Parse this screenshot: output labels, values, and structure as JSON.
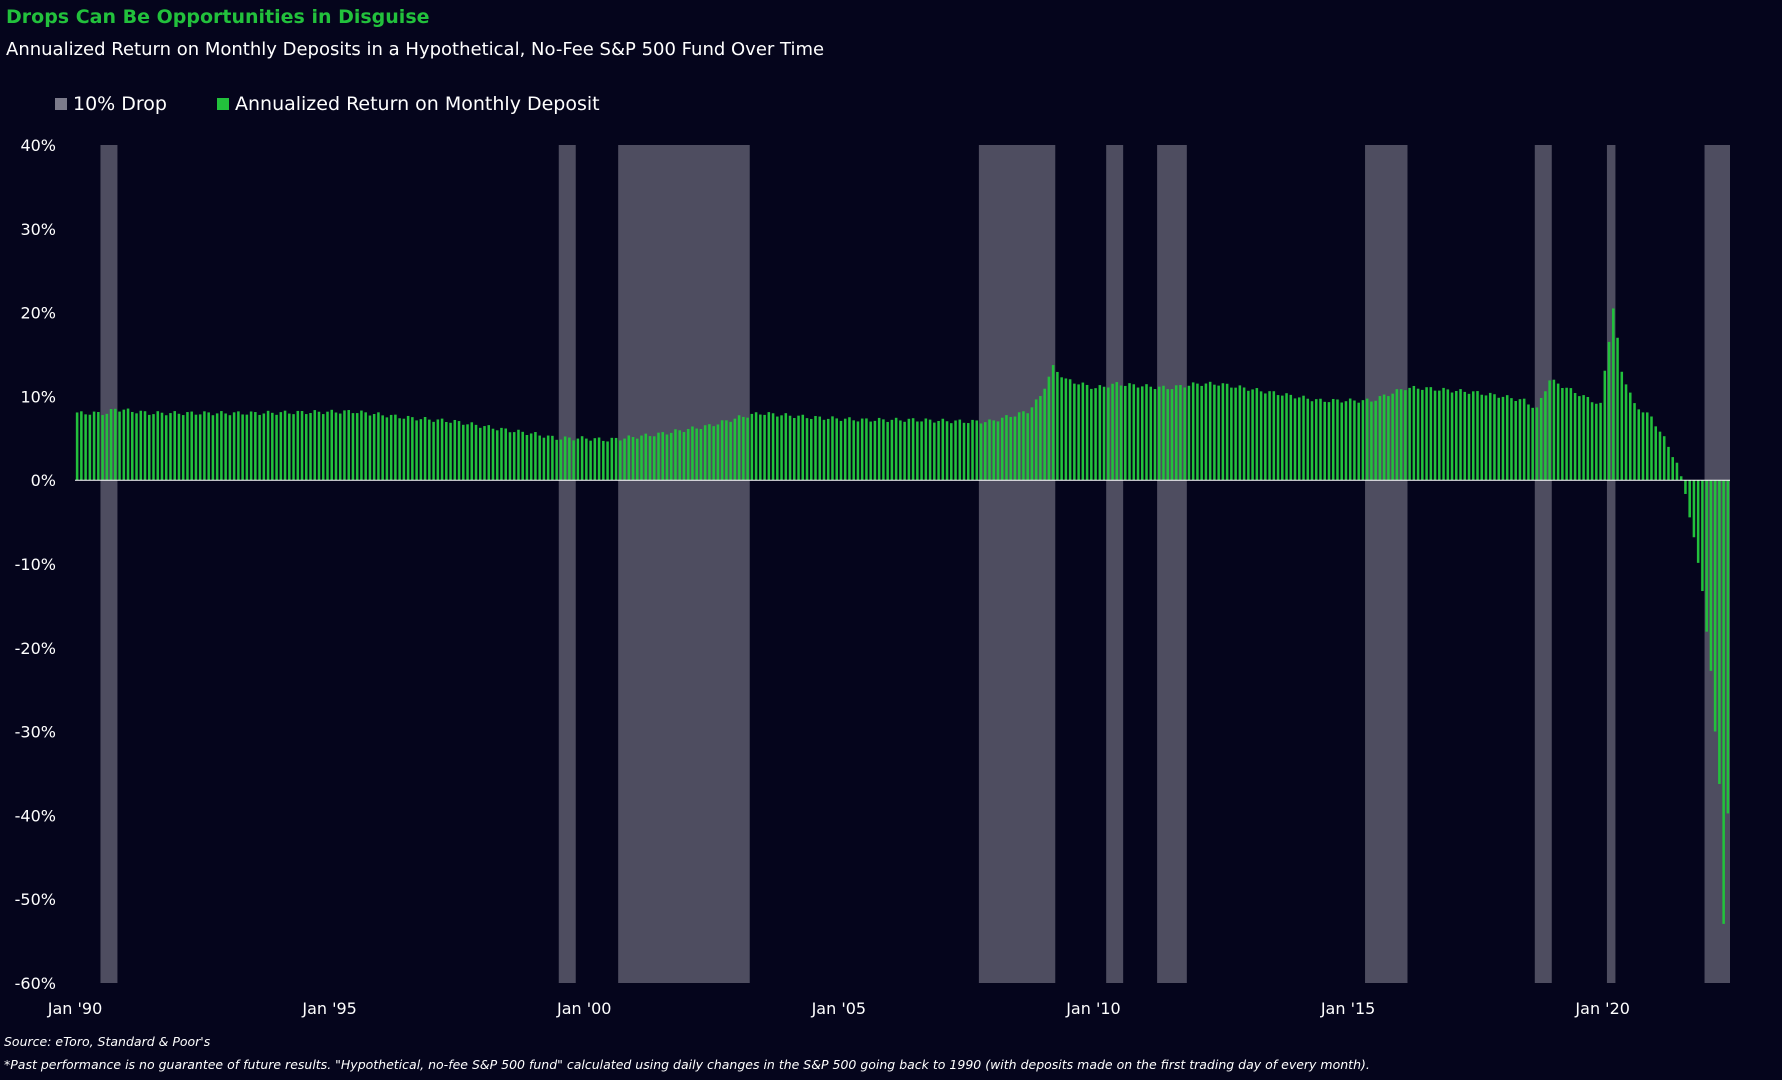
{
  "header": {
    "title": "Drops Can Be Opportunities in Disguise",
    "subtitle": "Annualized Return on Monthly Deposits in a Hypothetical, No-Fee S&P 500 Fund Over Time"
  },
  "legend": {
    "items": [
      {
        "label": "10% Drop",
        "color": "#7c7b8b"
      },
      {
        "label": "Annualized Return on Monthly Deposit",
        "color": "#22c13c"
      }
    ]
  },
  "footer": {
    "source": "Source: eToro, Standard & Poor's",
    "note": "*Past performance is no guarantee of future results. \"Hypothetical, no-fee S&P 500 fund\" calculated using daily changes in the S&P 500 going back to 1990 (with deposits made on the first trading day of every month)."
  },
  "colors": {
    "background": "#05051c",
    "bar": "#22c13c",
    "drop_band": "#7c7b8b"
  },
  "chart_data": {
    "type": "bar",
    "x_type": "time",
    "ylim": [
      -60,
      40
    ],
    "yticks": [
      {
        "value": 40,
        "label": "40%"
      },
      {
        "value": 30,
        "label": "30%"
      },
      {
        "value": 20,
        "label": "20%"
      },
      {
        "value": 10,
        "label": "10%"
      },
      {
        "value": 0,
        "label": "0%"
      },
      {
        "value": -10,
        "label": "-10%"
      },
      {
        "value": -20,
        "label": "-20%"
      },
      {
        "value": -30,
        "label": "-30%"
      },
      {
        "value": -40,
        "label": "-40%"
      },
      {
        "value": -50,
        "label": "-50%"
      },
      {
        "value": -60,
        "label": "-60%"
      }
    ],
    "xticks": [
      {
        "value": "1990-01",
        "label": "Jan '90"
      },
      {
        "value": "1995-01",
        "label": "Jan '95"
      },
      {
        "value": "2000-01",
        "label": "Jan '00"
      },
      {
        "value": "2005-01",
        "label": "Jan '05"
      },
      {
        "value": "2010-01",
        "label": "Jan '10"
      },
      {
        "value": "2015-01",
        "label": "Jan '15"
      },
      {
        "value": "2020-01",
        "label": "Jan '20"
      }
    ],
    "xlim": [
      "1990-01",
      "2022-06"
    ],
    "drop_periods": [
      {
        "start": "1990-07",
        "end": "1990-10"
      },
      {
        "start": "1999-07",
        "end": "1999-10"
      },
      {
        "start": "2000-09",
        "end": "2003-03"
      },
      {
        "start": "2007-10",
        "end": "2009-03"
      },
      {
        "start": "2010-04",
        "end": "2010-07"
      },
      {
        "start": "2011-04",
        "end": "2011-10"
      },
      {
        "start": "2015-05",
        "end": "2016-02"
      },
      {
        "start": "2018-09",
        "end": "2018-12"
      },
      {
        "start": "2020-02",
        "end": "2020-03"
      },
      {
        "start": "2022-01",
        "end": "2022-06"
      }
    ],
    "series": [
      {
        "start": "1990-01",
        "anchors": [
          [
            "1990-01",
            8.0
          ],
          [
            "1990-08",
            8.0
          ],
          [
            "1990-10",
            8.5
          ],
          [
            "1991-06",
            8.0
          ],
          [
            "1993-06",
            8.0
          ],
          [
            "1995-06",
            8.2
          ],
          [
            "1996-06",
            7.5
          ],
          [
            "1997-06",
            7.0
          ],
          [
            "1998-06",
            6.0
          ],
          [
            "1999-01",
            5.5
          ],
          [
            "1999-06",
            5.0
          ],
          [
            "2000-01",
            5.0
          ],
          [
            "2000-06",
            4.8
          ],
          [
            "2001-06",
            5.5
          ],
          [
            "2002-06",
            6.5
          ],
          [
            "2003-01",
            7.5
          ],
          [
            "2003-06",
            8.0
          ],
          [
            "2004-06",
            7.5
          ],
          [
            "2005-06",
            7.2
          ],
          [
            "2006-06",
            7.2
          ],
          [
            "2007-06",
            7.0
          ],
          [
            "2007-12",
            7.0
          ],
          [
            "2008-06",
            7.8
          ],
          [
            "2008-09",
            8.2
          ],
          [
            "2008-12",
            10.0
          ],
          [
            "2009-03",
            13.5
          ],
          [
            "2009-06",
            12.0
          ],
          [
            "2010-01",
            11.0
          ],
          [
            "2010-06",
            11.5
          ],
          [
            "2011-06",
            11.0
          ],
          [
            "2012-01",
            11.5
          ],
          [
            "2012-06",
            11.5
          ],
          [
            "2013-06",
            10.5
          ],
          [
            "2014-06",
            9.5
          ],
          [
            "2015-06",
            9.5
          ],
          [
            "2016-02",
            11.0
          ],
          [
            "2016-06",
            11.0
          ],
          [
            "2017-06",
            10.5
          ],
          [
            "2018-01",
            10.0
          ],
          [
            "2018-06",
            9.5
          ],
          [
            "2018-09",
            8.5
          ],
          [
            "2018-12",
            12.0
          ],
          [
            "2019-06",
            10.5
          ],
          [
            "2019-12",
            9.0
          ],
          [
            "2020-01",
            13.0
          ],
          [
            "2020-03",
            20.5
          ],
          [
            "2020-05",
            13.0
          ],
          [
            "2020-08",
            9.0
          ],
          [
            "2020-12",
            7.5
          ],
          [
            "2021-03",
            5.0
          ],
          [
            "2021-06",
            2.0
          ],
          [
            "2021-08",
            -1.5
          ],
          [
            "2021-10",
            -7.0
          ],
          [
            "2021-12",
            -13.0
          ],
          [
            "2022-02",
            -23.0
          ],
          [
            "2022-03",
            -30.0
          ],
          [
            "2022-04",
            -36.0
          ],
          [
            "2022-05",
            -53.0
          ],
          [
            "2022-06",
            -40.0
          ]
        ]
      }
    ]
  }
}
